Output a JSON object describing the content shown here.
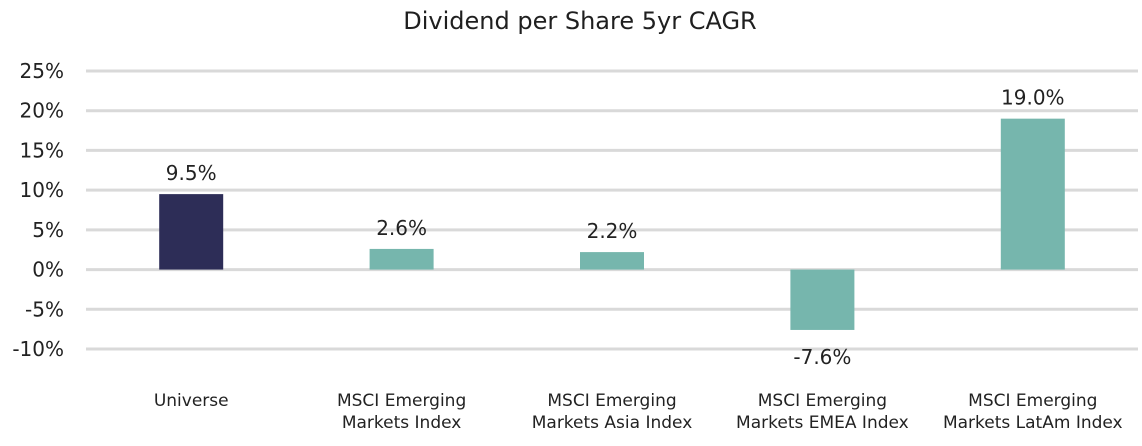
{
  "chart_data": {
    "type": "bar",
    "title": "Dividend per Share 5yr CAGR",
    "categories": [
      [
        "Universe"
      ],
      [
        "MSCI Emerging",
        "Markets Index"
      ],
      [
        "MSCI Emerging",
        "Markets Asia Index"
      ],
      [
        "MSCI Emerging",
        "Markets EMEA Index"
      ],
      [
        "MSCI Emerging",
        "Markets LatAm Index"
      ]
    ],
    "values": [
      9.5,
      2.6,
      2.2,
      -7.6,
      19.0
    ],
    "value_labels": [
      "9.5%",
      "2.6%",
      "2.2%",
      "-7.6%",
      "19.0%"
    ],
    "bar_colors": [
      "#2d2d57",
      "#76b6ad",
      "#76b6ad",
      "#76b6ad",
      "#76b6ad"
    ],
    "ylim": [
      -10,
      25
    ],
    "yticks": [
      25,
      20,
      15,
      10,
      5,
      0,
      -5,
      -10
    ],
    "ytick_labels": [
      "25%",
      "20%",
      "15%",
      "10%",
      "5%",
      "0%",
      "-5%",
      "-10%"
    ],
    "grid": true,
    "gridline_color": "#d9d9d9",
    "legend": "none",
    "xlabel": "",
    "ylabel": ""
  }
}
